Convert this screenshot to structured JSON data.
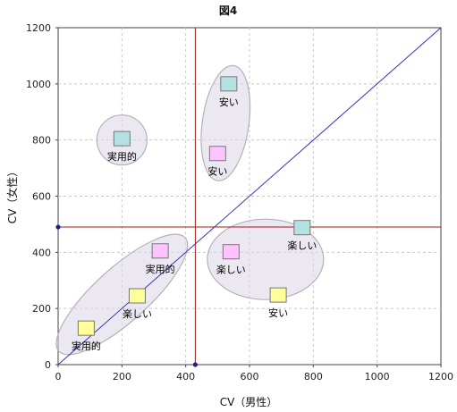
{
  "chart_data": {
    "type": "scatter",
    "title": "図4",
    "xlabel": "CV（男性）",
    "ylabel": "CV（女性）",
    "xlim": [
      0,
      1200
    ],
    "ylim": [
      0,
      1200
    ],
    "xticks": [
      "0",
      "200",
      "400",
      "600",
      "800",
      "1000",
      "1200"
    ],
    "yticks": [
      "0",
      "200",
      "400",
      "600",
      "800",
      "1000",
      "1200"
    ],
    "grid": true,
    "reference_lines": {
      "x": 430,
      "y": 490,
      "diagonal": true
    },
    "points": [
      {
        "label": "安い",
        "x": 535,
        "y": 1000,
        "color": "#b4e1e1"
      },
      {
        "label": "実用的",
        "x": 200,
        "y": 805,
        "color": "#b4e1e1"
      },
      {
        "label": "安い",
        "x": 500,
        "y": 752,
        "color": "#ffc4ff"
      },
      {
        "label": "楽しい",
        "x": 765,
        "y": 488,
        "color": "#b4e1e1"
      },
      {
        "label": "実用的",
        "x": 320,
        "y": 405,
        "color": "#ffc4ff"
      },
      {
        "label": "楽しい",
        "x": 542,
        "y": 402,
        "color": "#ffc4ff"
      },
      {
        "label": "楽しい",
        "x": 248,
        "y": 245,
        "color": "#ffff99"
      },
      {
        "label": "安い",
        "x": 690,
        "y": 248,
        "color": "#ffff99"
      },
      {
        "label": "実用的",
        "x": 88,
        "y": 130,
        "color": "#ffff99"
      }
    ]
  }
}
